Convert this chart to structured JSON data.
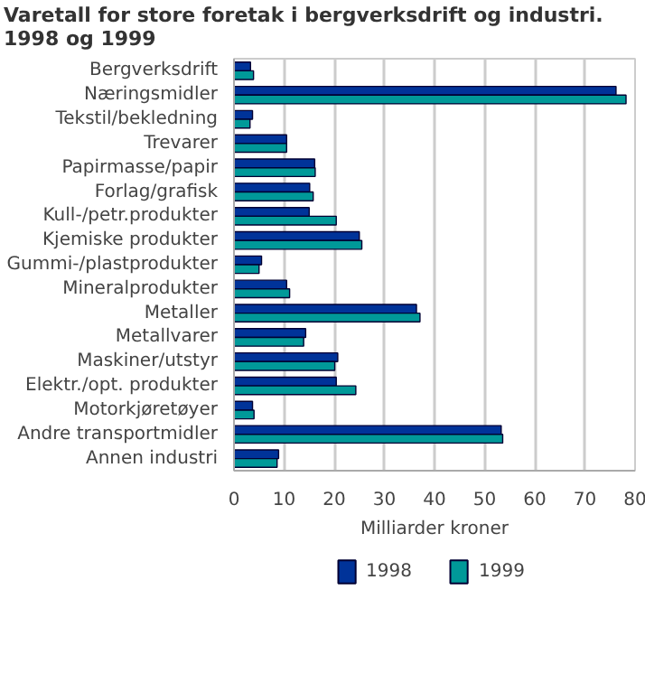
{
  "chart_data": {
    "type": "bar",
    "orientation": "horizontal",
    "title": "Varetall for store foretak i bergverksdrift og industri.\n1998 og 1999",
    "xlabel": "Milliarder kroner",
    "categories": [
      "Bergverksdrift",
      "Næringsmidler",
      "Tekstil/bekledning",
      "Trevarer",
      "Papirmasse/papir",
      "Forlag/grafisk",
      "Kull-/petr.produkter",
      "Kjemiske produkter",
      "Gummi-/plastprodukter",
      "Mineralprodukter",
      "Metaller",
      "Metallvarer",
      "Maskiner/utstyr",
      "Elektr./opt. produkter",
      "Motorkjøretøyer",
      "Andre transportmidler",
      "Annen industri"
    ],
    "series": [
      {
        "name": "1998",
        "color": "#003399",
        "values": [
          3.3,
          76.2,
          3.7,
          10.5,
          16.1,
          15.1,
          15.0,
          25.0,
          5.5,
          10.5,
          36.4,
          14.3,
          20.7,
          20.4,
          3.7,
          53.3,
          8.9
        ]
      },
      {
        "name": "1999",
        "color": "#009999",
        "values": [
          3.9,
          78.2,
          3.2,
          10.5,
          16.2,
          15.8,
          20.4,
          25.5,
          5.0,
          11.1,
          37.1,
          13.9,
          20.1,
          24.3,
          4.0,
          53.6,
          8.6
        ]
      }
    ],
    "xlim": [
      0,
      80
    ],
    "xticks": [
      0,
      10,
      20,
      30,
      40,
      50,
      60,
      70,
      80
    ],
    "grid": "x",
    "legend": "bottom"
  }
}
